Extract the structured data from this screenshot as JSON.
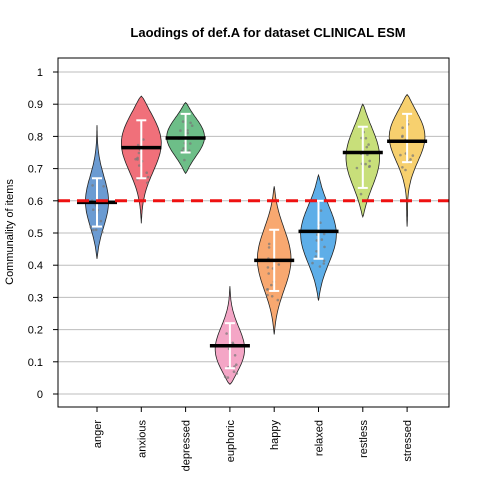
{
  "chart_data": {
    "type": "violin",
    "title": "Laodings of def.A for dataset CLINICAL ESM",
    "ylabel": "Communality of items",
    "xlabel": "",
    "ylim": [
      0,
      1
    ],
    "yticks": [
      "0",
      "0.1",
      "0.2",
      "0.3",
      "0.4",
      "0.5",
      "0.6",
      "0.7",
      "0.8",
      "0.9",
      "1"
    ],
    "grid": "horizontal",
    "reference_line": {
      "value": 0.6,
      "color": "#ee1111",
      "style": "dashed"
    },
    "categories": [
      "anger",
      "anxious",
      "depressed",
      "euphoric",
      "happy",
      "relaxed",
      "restless",
      "stressed"
    ],
    "colors": [
      "#6b9bd2",
      "#f0707a",
      "#6dbe88",
      "#f4a6c6",
      "#f8a870",
      "#5eaee8",
      "#c8df7a",
      "#f7d06e"
    ],
    "series": [
      {
        "category": "anger",
        "median": 0.595,
        "q1": 0.52,
        "q3": 0.67,
        "min": 0.42,
        "max": 0.835,
        "mode": 0.59,
        "width": 0.55
      },
      {
        "category": "anxious",
        "median": 0.765,
        "q1": 0.67,
        "q3": 0.85,
        "min": 0.53,
        "max": 0.925,
        "mode": 0.8,
        "width": 0.95
      },
      {
        "category": "depressed",
        "median": 0.795,
        "q1": 0.75,
        "q3": 0.87,
        "min": 0.685,
        "max": 0.905,
        "mode": 0.8,
        "width": 0.9
      },
      {
        "category": "euphoric",
        "median": 0.15,
        "q1": 0.08,
        "q3": 0.22,
        "min": 0.03,
        "max": 0.335,
        "mode": 0.12,
        "width": 0.7
      },
      {
        "category": "happy",
        "median": 0.415,
        "q1": 0.32,
        "q3": 0.51,
        "min": 0.185,
        "max": 0.645,
        "mode": 0.42,
        "width": 0.8
      },
      {
        "category": "relaxed",
        "median": 0.505,
        "q1": 0.42,
        "q3": 0.6,
        "min": 0.29,
        "max": 0.68,
        "mode": 0.5,
        "width": 0.85
      },
      {
        "category": "restless",
        "median": 0.75,
        "q1": 0.64,
        "q3": 0.83,
        "min": 0.55,
        "max": 0.9,
        "mode": 0.74,
        "width": 0.8
      },
      {
        "category": "stressed",
        "median": 0.785,
        "q1": 0.72,
        "q3": 0.87,
        "min": 0.52,
        "max": 0.93,
        "mode": 0.82,
        "width": 0.85
      }
    ]
  }
}
